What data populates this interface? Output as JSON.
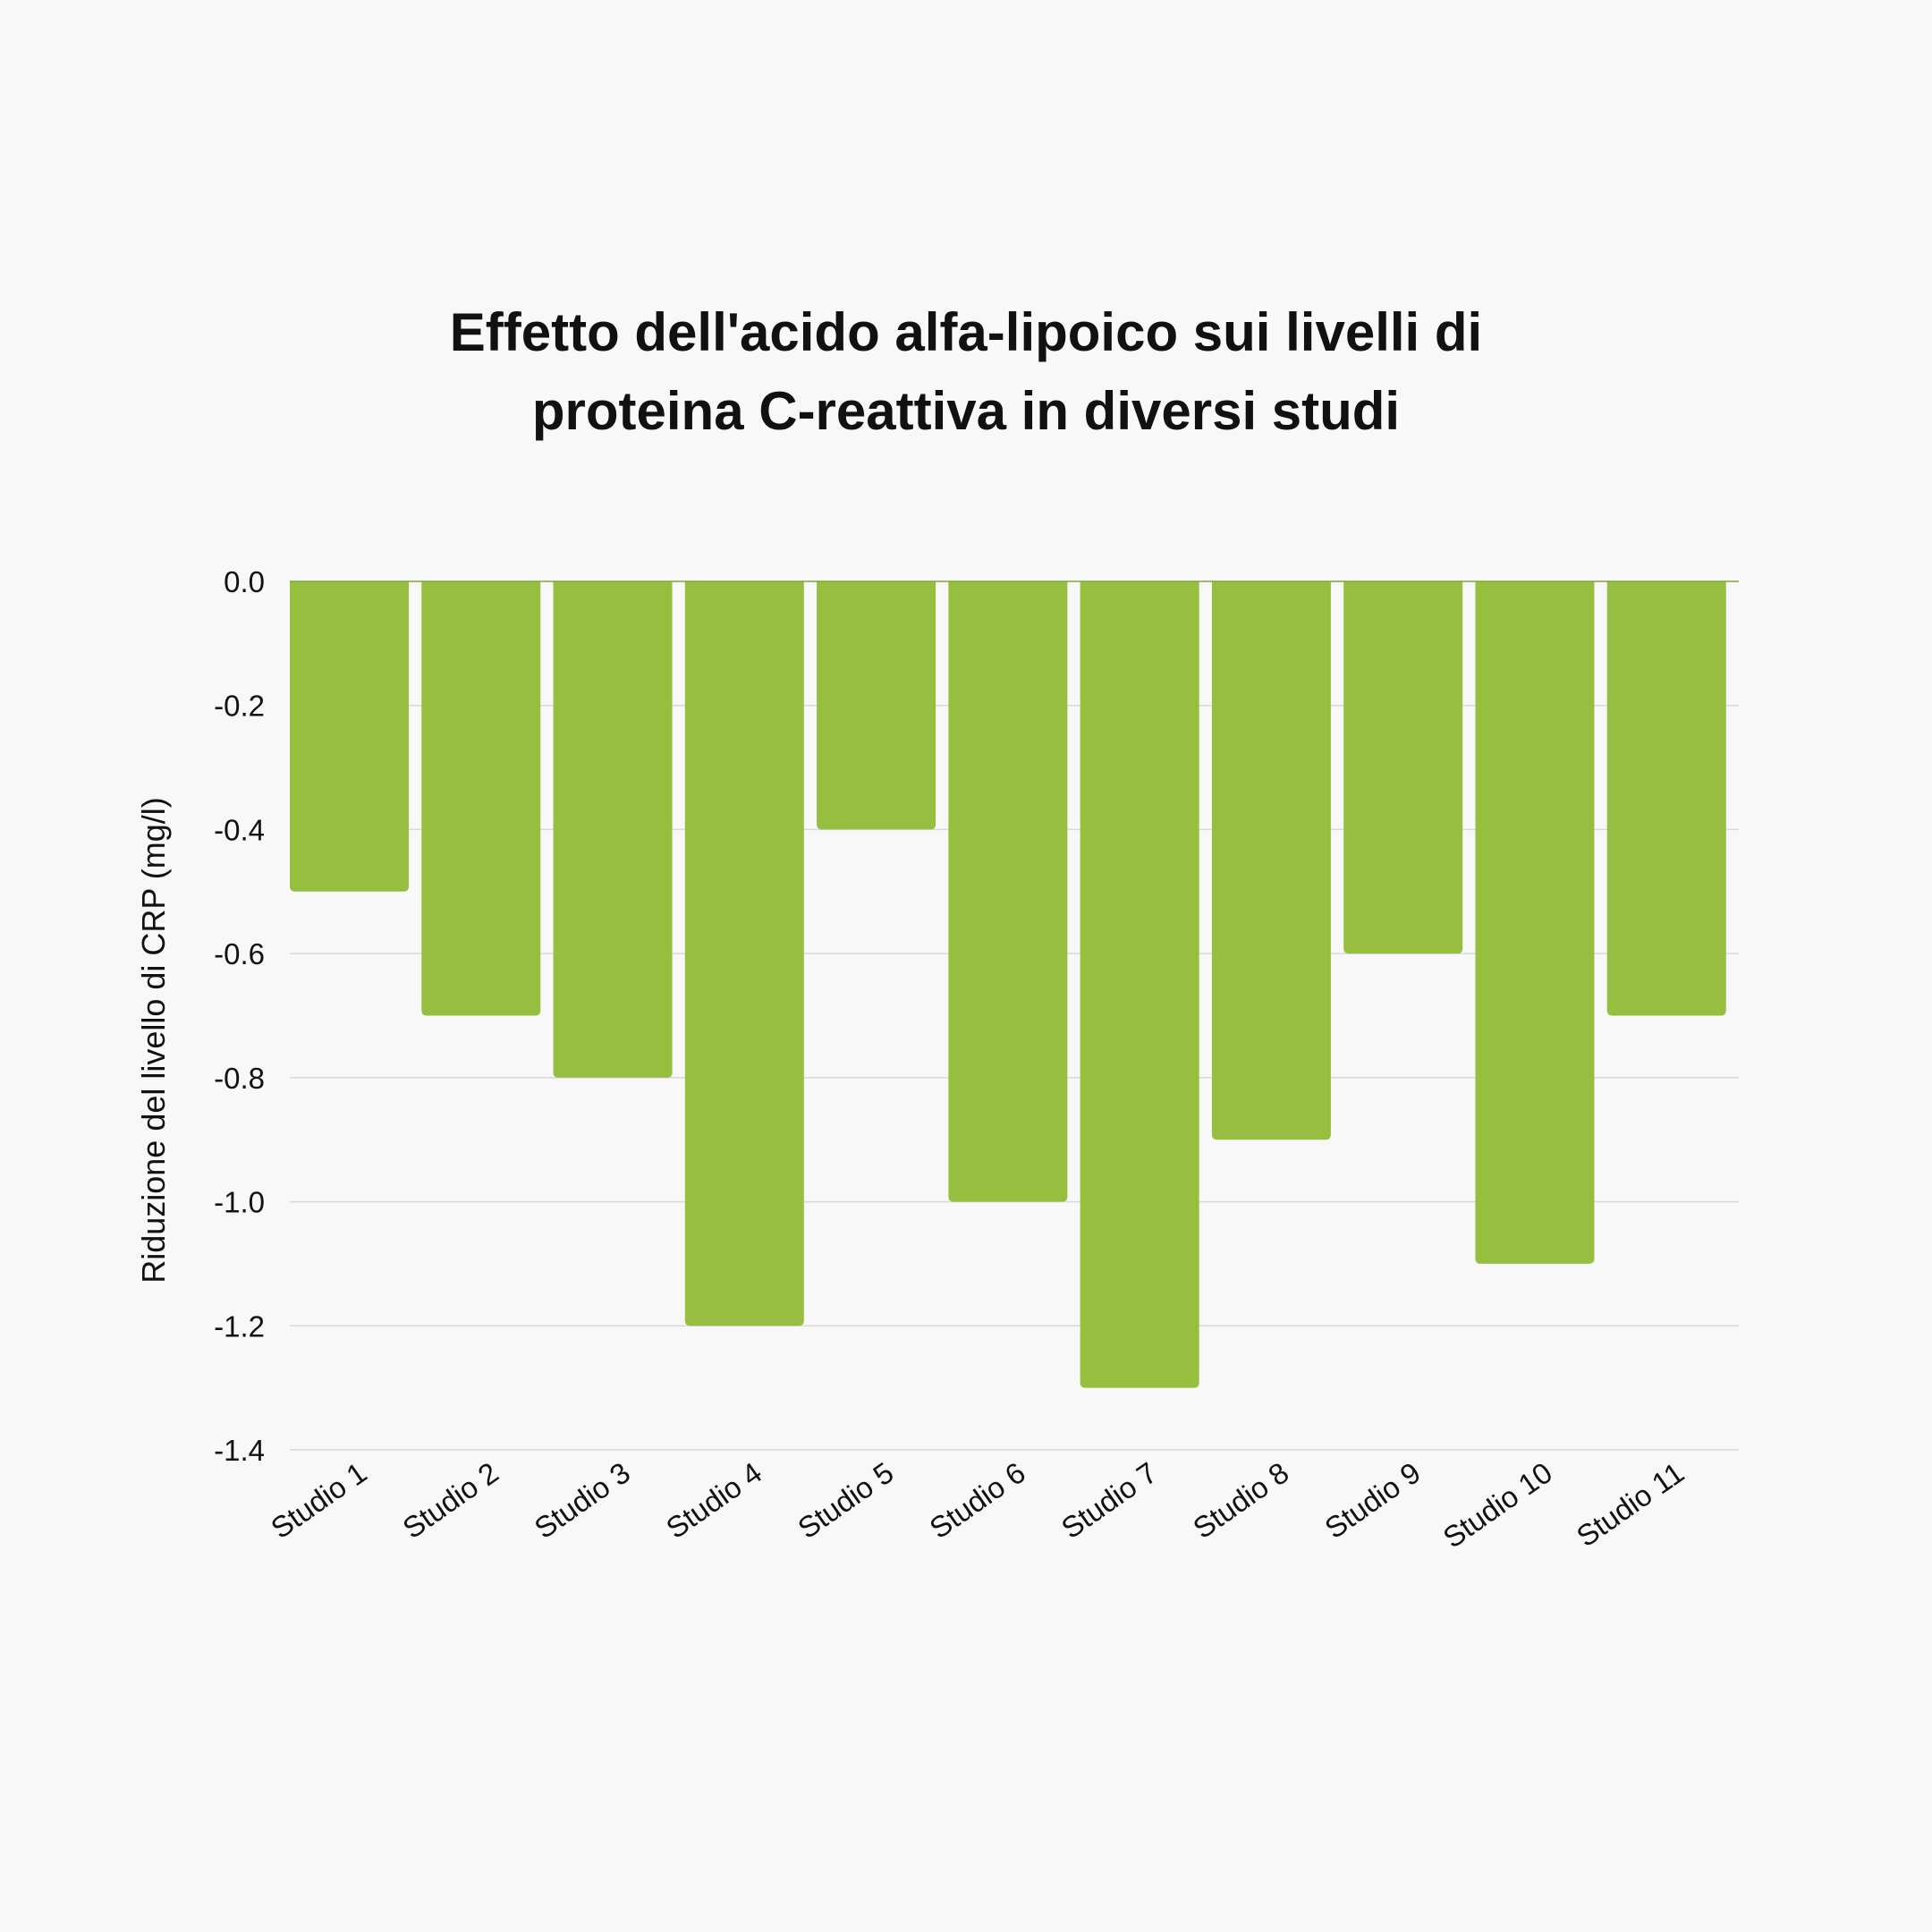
{
  "chart_data": {
    "type": "bar",
    "title": "Effetto dell'acido alfa-lipoico sui livelli di proteina C-reattiva in diversi studi",
    "title_lines": [
      "Effetto dell'acido alfa-lipoico sui livelli di",
      "proteina C-reattiva in diversi studi"
    ],
    "xlabel": "",
    "ylabel": "Riduzione del livello di CRP (mg/l)",
    "categories": [
      "Studio 1",
      "Studio 2",
      "Studio 3",
      "Studio 4",
      "Studio 5",
      "Studio 6",
      "Studio 7",
      "Studio 8",
      "Studio 9",
      "Studio 10",
      "Studio 11"
    ],
    "values": [
      -0.5,
      -0.7,
      -0.8,
      -1.2,
      -0.4,
      -1.0,
      -1.3,
      -0.9,
      -0.6,
      -1.1,
      -0.7
    ],
    "ylim": [
      -1.4,
      0.0
    ],
    "yticks": [
      "0.0",
      "-0.2",
      "-0.4",
      "-0.6",
      "-0.8",
      "-1.0",
      "-1.2",
      "-1.4"
    ],
    "ytick_values": [
      0.0,
      -0.2,
      -0.4,
      -0.6,
      -0.8,
      -1.0,
      -1.2,
      -1.4
    ],
    "grid": true,
    "bar_color": "#96bf3f",
    "grid_color": "#d9d9d9",
    "zero_line_color": "#7ea838"
  }
}
